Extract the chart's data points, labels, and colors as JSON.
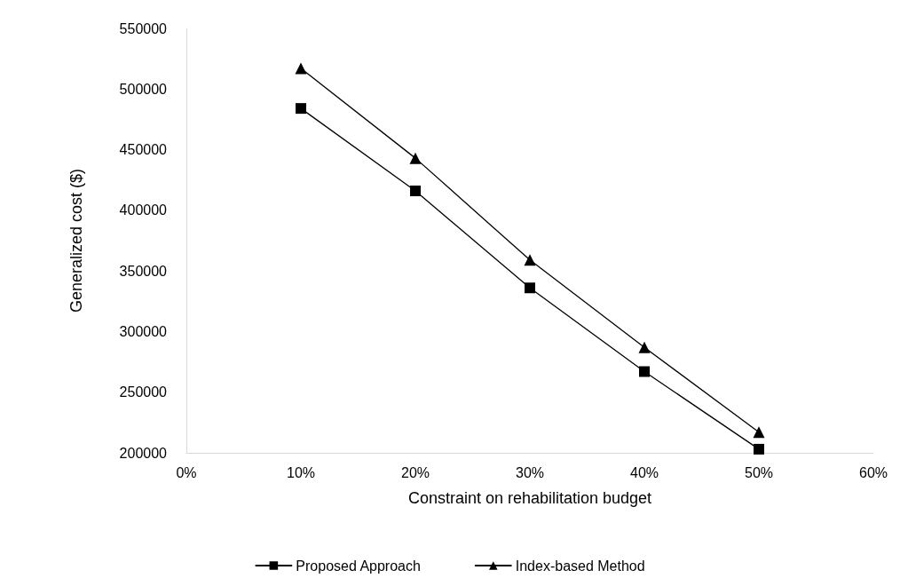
{
  "chart_data": {
    "type": "line",
    "xlabel": "Constraint on rehabilitation budget",
    "ylabel": "Generalized cost ($)",
    "x": [
      10,
      20,
      30,
      40,
      50
    ],
    "series": [
      {
        "name": "Proposed Approach",
        "color": "#000000",
        "marker": "square",
        "values": [
          484000,
          416000,
          336000,
          267000,
          203000
        ]
      },
      {
        "name": "Index-based Method",
        "color": "#000000",
        "marker": "triangle",
        "values": [
          517000,
          443000,
          359000,
          287000,
          217000
        ]
      }
    ],
    "xlim": [
      0,
      60
    ],
    "xticks": [
      {
        "value": 0,
        "label": "0%"
      },
      {
        "value": 10,
        "label": "10%"
      },
      {
        "value": 20,
        "label": "20%"
      },
      {
        "value": 30,
        "label": "30%"
      },
      {
        "value": 40,
        "label": "40%"
      },
      {
        "value": 50,
        "label": "50%"
      },
      {
        "value": 60,
        "label": "60%"
      }
    ],
    "ylim": [
      200000,
      550000
    ],
    "yticks": [
      200000,
      250000,
      300000,
      350000,
      400000,
      450000,
      500000,
      550000
    ],
    "grid": false,
    "legend": "bottom",
    "line_style": "solid"
  }
}
